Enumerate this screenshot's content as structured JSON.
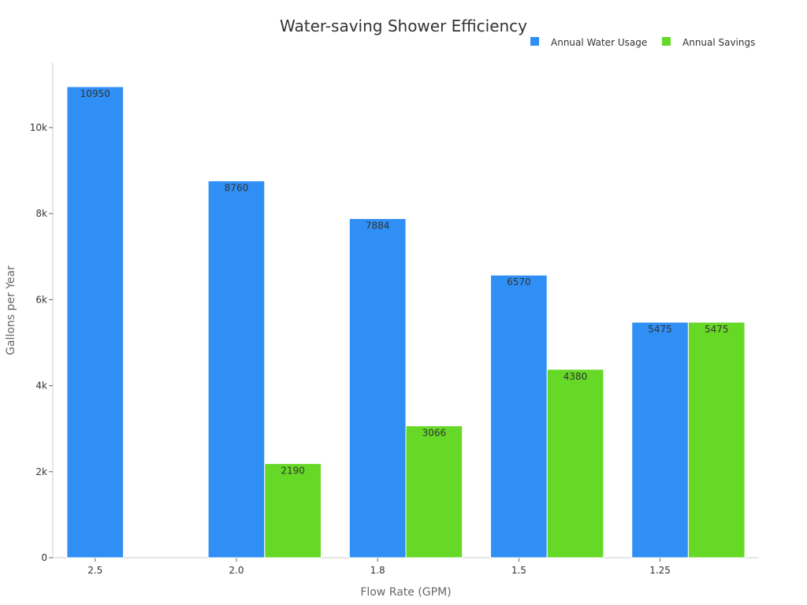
{
  "chart_data": {
    "type": "bar",
    "title": "Water-saving Shower Efficiency",
    "xlabel": "Flow Rate (GPM)",
    "ylabel": "Gallons per Year",
    "categories": [
      "2.5",
      "2.0",
      "1.8",
      "1.5",
      "1.25"
    ],
    "series": [
      {
        "name": "Annual Water Usage",
        "color": "#2f8ff5",
        "values": [
          10950,
          8760,
          7884,
          6570,
          5475
        ],
        "labels": [
          "10950",
          "8760",
          "7884",
          "6570",
          "5475"
        ]
      },
      {
        "name": "Annual Savings",
        "color": "#66d926",
        "values": [
          0,
          2190,
          3066,
          4380,
          5475
        ],
        "labels": [
          "",
          "2190",
          "3066",
          "4380",
          "5475"
        ]
      }
    ],
    "ylim": [
      0,
      11500
    ],
    "yticks": [
      0,
      2000,
      4000,
      6000,
      8000,
      10000
    ],
    "ytick_labels": [
      "0",
      "2k",
      "4k",
      "6k",
      "8k",
      "10k"
    ],
    "grid": false,
    "legend_position": "top-right"
  }
}
